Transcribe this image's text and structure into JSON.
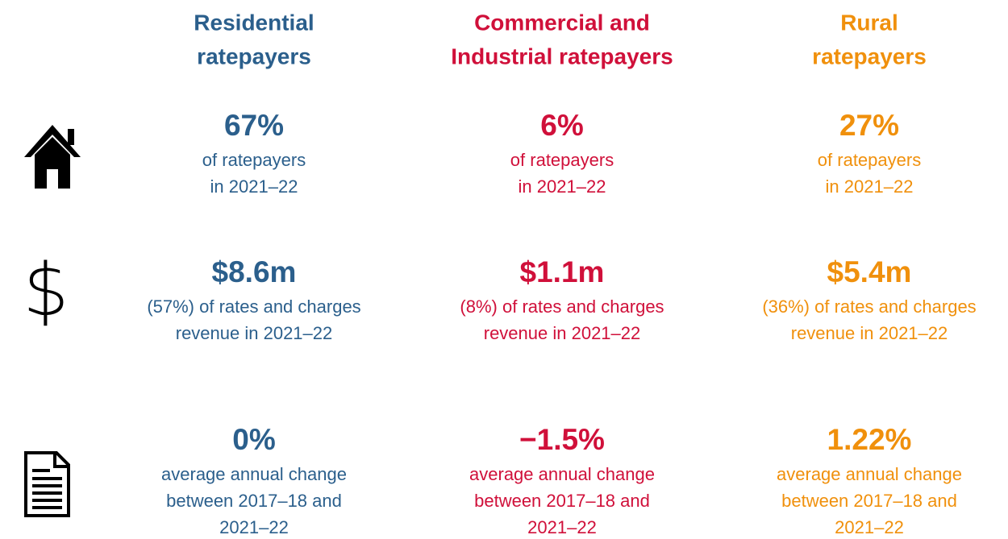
{
  "columns": [
    {
      "title": [
        "Residential",
        "ratepayers"
      ],
      "color": "#2b5f8c",
      "stats": [
        {
          "value": "67%",
          "caption": [
            "of ratepayers",
            "in 2021–22"
          ]
        },
        {
          "value": "$8.6m",
          "caption": [
            "(57%) of rates and charges",
            "revenue in 2021–22"
          ]
        },
        {
          "value": "0%",
          "caption": [
            "average annual change",
            "between 2017–18 and",
            "2021–22"
          ]
        }
      ]
    },
    {
      "title": [
        "Commercial and",
        "Industrial ratepayers"
      ],
      "color": "#d0103a",
      "stats": [
        {
          "value": "6%",
          "caption": [
            "of ratepayers",
            "in 2021–22"
          ]
        },
        {
          "value": "$1.1m",
          "caption": [
            "(8%) of rates and charges",
            "revenue in 2021–22"
          ]
        },
        {
          "value": "−1.5%",
          "caption": [
            "average annual change",
            "between 2017–18 and",
            "2021–22"
          ]
        }
      ]
    },
    {
      "title": [
        "Rural",
        "ratepayers"
      ],
      "color": "#f0900c",
      "stats": [
        {
          "value": "27%",
          "caption": [
            "of ratepayers",
            "in 2021–22"
          ]
        },
        {
          "value": "$5.4m",
          "caption": [
            "(36%) of rates and charges",
            "revenue in 2021–22"
          ]
        },
        {
          "value": "1.22%",
          "caption": [
            "average annual change",
            "between 2017–18 and",
            "2021–22"
          ]
        }
      ]
    }
  ]
}
